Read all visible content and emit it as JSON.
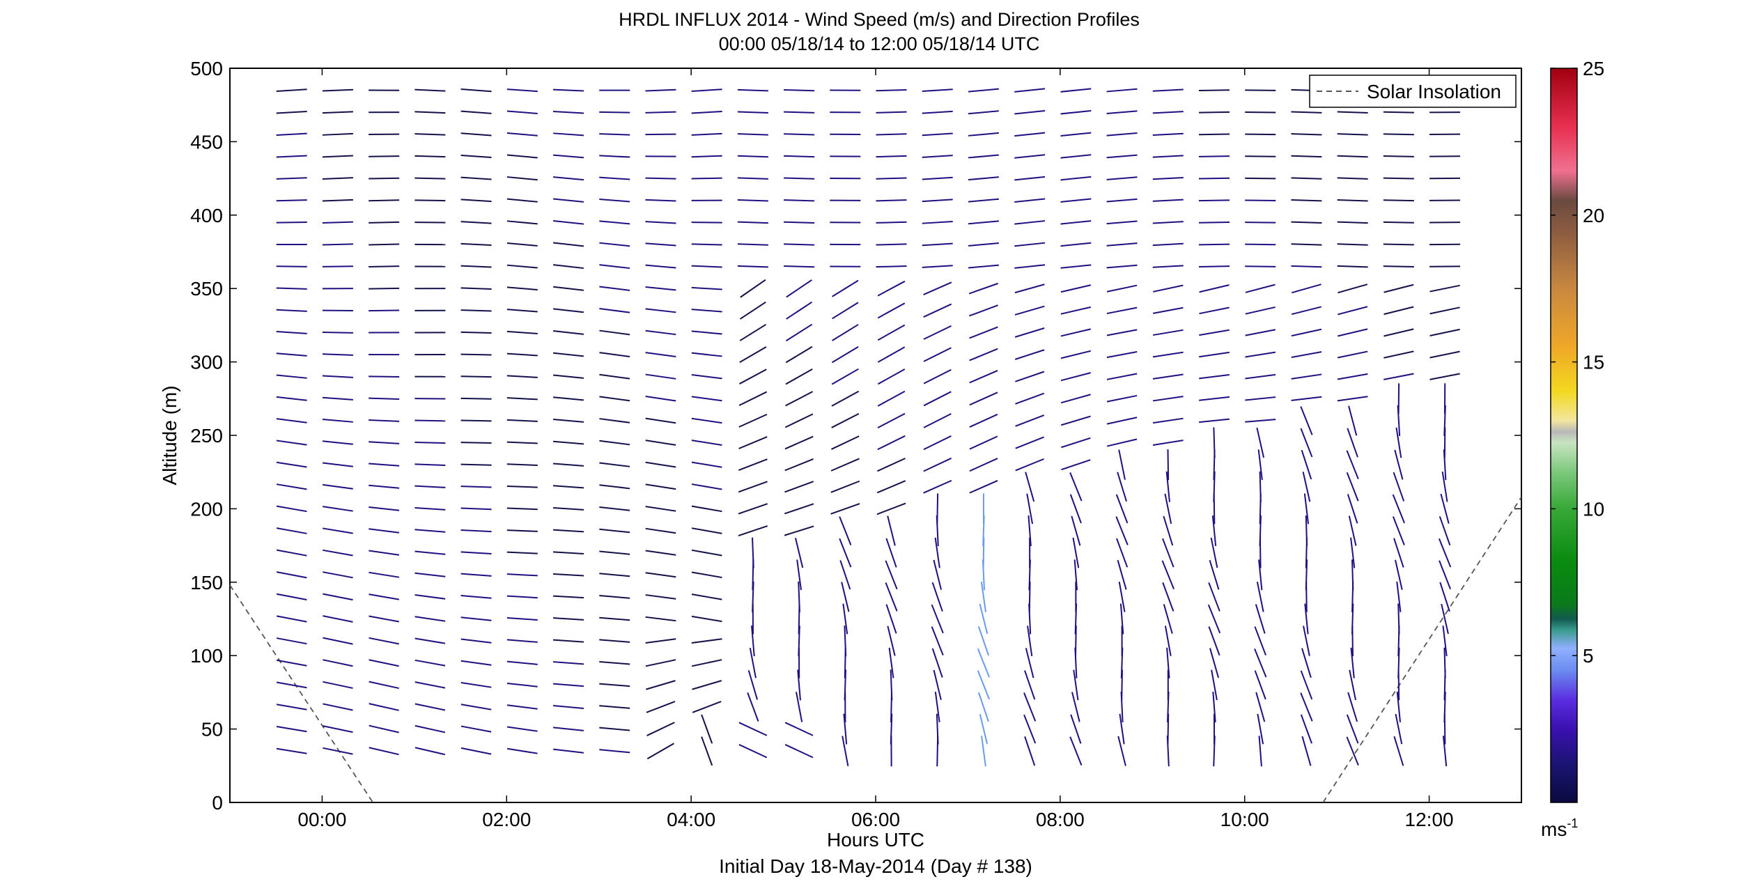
{
  "chart_data": {
    "type": "quiver",
    "title": "HRDL INFLUX 2014 - Wind Speed (m/s) and Direction Profiles",
    "subtitle": "00:00 05/18/14 to 12:00 05/18/14  UTC",
    "xlabel": "Hours UTC",
    "xlabel2": "Initial Day 18-May-2014 (Day # 138)",
    "ylabel": "Altitude (m)",
    "xlim": [
      -1.0,
      13.0
    ],
    "ylim": [
      0,
      500
    ],
    "x_ticks": [
      0,
      2,
      4,
      6,
      8,
      10,
      12
    ],
    "x_tick_labels": [
      "00:00",
      "02:00",
      "04:00",
      "06:00",
      "08:00",
      "10:00",
      "12:00"
    ],
    "y_ticks": [
      0,
      50,
      100,
      150,
      200,
      250,
      300,
      350,
      400,
      450,
      500
    ],
    "y_tick_labels": [
      "0",
      "50",
      "100",
      "150",
      "200",
      "250",
      "300",
      "350",
      "400",
      "450",
      "500"
    ],
    "colorbar": {
      "range": [
        0,
        25
      ],
      "ticks": [
        5,
        10,
        15,
        20,
        25
      ],
      "tick_labels": [
        "5",
        "10",
        "15",
        "20",
        "25"
      ],
      "unit_base": "ms",
      "unit_exp": "-1"
    },
    "legend": {
      "label": "Solar Insolation",
      "position": "top-right",
      "style": "dashed"
    },
    "solar_insolation": {
      "x": [
        -1.0,
        0.55,
        10.85,
        13.0
      ],
      "y": [
        148,
        0,
        0,
        208
      ]
    },
    "profile_times": [
      -0.33,
      0.17,
      0.67,
      1.17,
      1.67,
      2.17,
      2.67,
      3.17,
      3.67,
      4.17,
      4.67,
      5.17,
      5.67,
      6.17,
      6.67,
      7.17,
      7.67,
      8.17,
      8.67,
      9.17,
      9.67,
      10.17,
      10.67,
      11.17,
      11.67,
      12.17
    ],
    "altitudes": [
      35,
      50,
      65,
      80,
      95,
      110,
      125,
      140,
      155,
      170,
      185,
      200,
      215,
      230,
      245,
      260,
      275,
      290,
      305,
      320,
      335,
      350,
      365,
      380,
      395,
      410,
      425,
      440,
      455,
      470,
      485
    ],
    "note_vectors": "Each segment: altitude (m) and profile time; wind speed in m/s, direction as azimuth of segment in degrees (0 = pointing up)."
  }
}
